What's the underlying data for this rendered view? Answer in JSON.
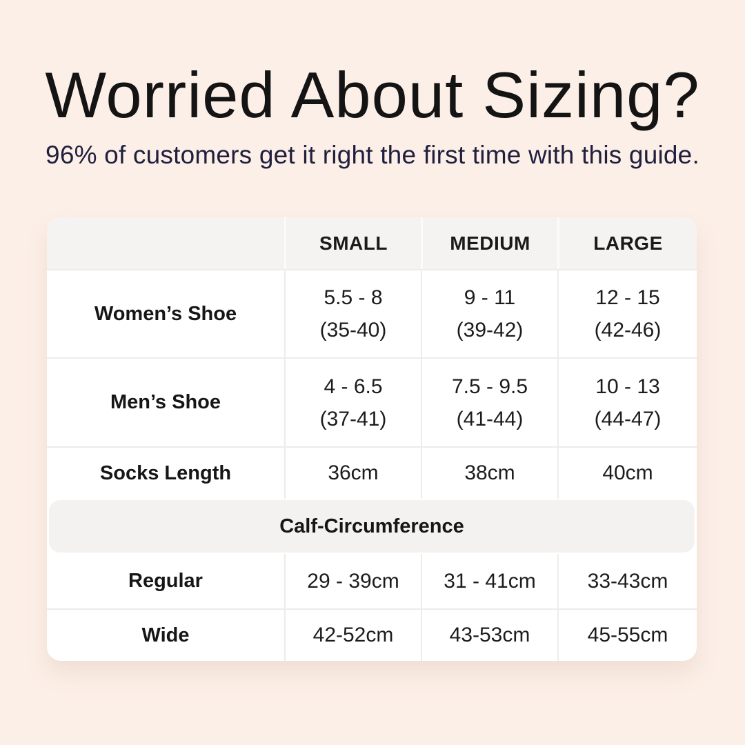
{
  "header": {
    "title": "Worried About Sizing?",
    "subtitle": "96% of customers get it right the first time with this guide."
  },
  "table": {
    "columns": [
      "SMALL",
      "MEDIUM",
      "LARGE"
    ],
    "shoe_rows": [
      {
        "label": "Women’s Shoe",
        "cells": [
          {
            "line1": "5.5 - 8",
            "line2": "(35-40)"
          },
          {
            "line1": "9 - 11",
            "line2": "(39-42)"
          },
          {
            "line1": "12 - 15",
            "line2": "(42-46)"
          }
        ]
      },
      {
        "label": "Men’s Shoe",
        "cells": [
          {
            "line1": "4 - 6.5",
            "line2": "(37-41)"
          },
          {
            "line1": "7.5 - 9.5",
            "line2": "(41-44)"
          },
          {
            "line1": "10 - 13",
            "line2": "(44-47)"
          }
        ]
      }
    ],
    "socks_length_row": {
      "label": "Socks Length",
      "values": [
        "36cm",
        "38cm",
        "40cm"
      ]
    },
    "section_header": "Calf-Circumference",
    "calf_rows": [
      {
        "label": "Regular",
        "values": [
          "29 - 39cm",
          "31 - 41cm",
          "33-43cm"
        ]
      },
      {
        "label": "Wide",
        "values": [
          "42-52cm",
          "43-53cm",
          "45-55cm"
        ]
      }
    ]
  },
  "colors": {
    "background": "#FCEFE7",
    "table_background": "#FFFFFF",
    "header_band": "#F4F3F1",
    "section_band": "#F3F2F0",
    "grid_line": "#EDECEA",
    "title_text": "#141414",
    "subtitle_text": "#20203E",
    "cell_text": "#1C1C1C"
  }
}
